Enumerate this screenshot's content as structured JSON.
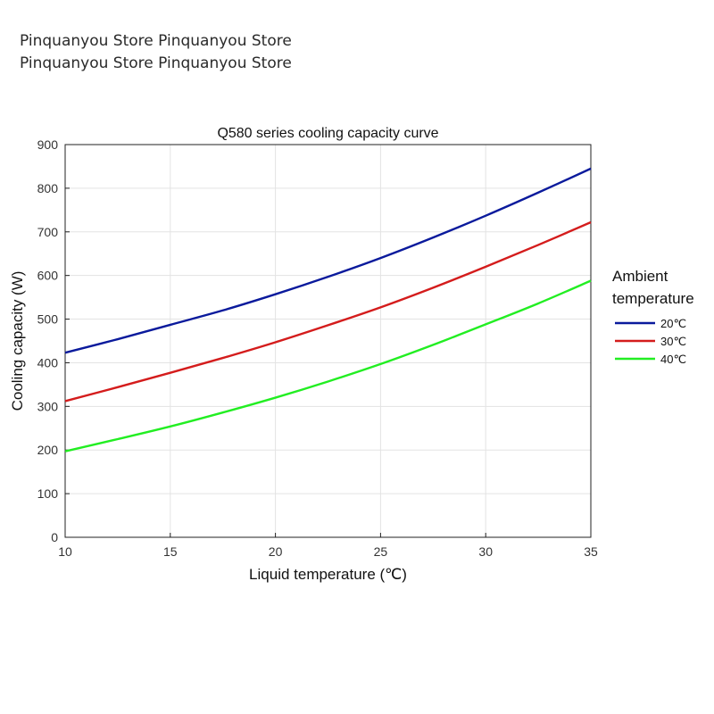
{
  "watermark": {
    "line1": "Pinquanyou Store Pinquanyou Store",
    "line2": "Pinquanyou Store Pinquanyou Store"
  },
  "chart_data": {
    "type": "line",
    "title": "Q580 series cooling capacity curve",
    "xlabel": "Liquid temperature (℃)",
    "ylabel": "Cooling capacity (W)",
    "xlim": [
      10,
      35
    ],
    "ylim": [
      0,
      900
    ],
    "xticks": [
      10,
      15,
      20,
      25,
      30,
      35
    ],
    "yticks": [
      0,
      100,
      200,
      300,
      400,
      500,
      600,
      700,
      800,
      900
    ],
    "grid": true,
    "legend": {
      "title_line1": "Ambient",
      "title_line2": "temperature",
      "placement": "right"
    },
    "x": [
      10,
      12.5,
      15,
      17.5,
      20,
      22.5,
      25,
      27.5,
      30,
      32.5,
      35
    ],
    "series": [
      {
        "name": "20℃",
        "color": "#0a1a9c",
        "values": [
          423,
          454,
          487,
          520,
          557,
          597,
          640,
          687,
          737,
          790,
          845
        ]
      },
      {
        "name": "30℃",
        "color": "#d41c1c",
        "values": [
          312,
          344,
          377,
          411,
          447,
          486,
          527,
          572,
          620,
          670,
          722
        ]
      },
      {
        "name": "40℃",
        "color": "#22ee22",
        "values": [
          197,
          225,
          254,
          286,
          320,
          357,
          397,
          441,
          488,
          536,
          588
        ]
      }
    ]
  }
}
